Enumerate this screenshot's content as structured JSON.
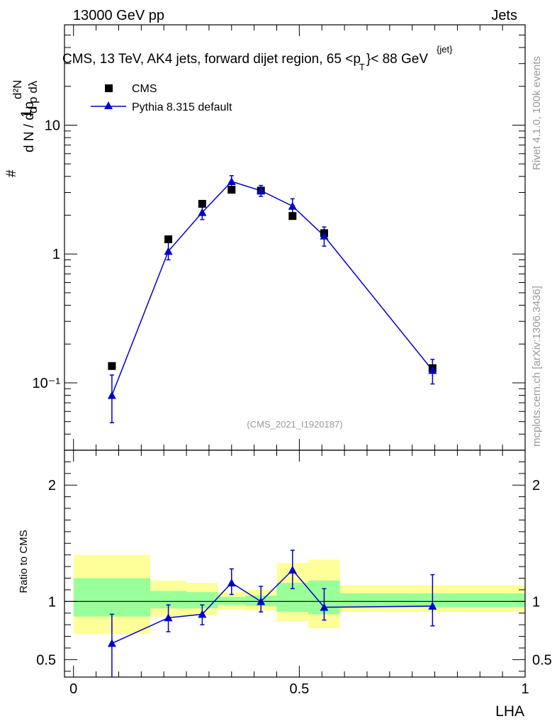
{
  "header": {
    "energy_label": "13000 GeV pp",
    "category_label": "Jets",
    "title_main": "CMS, 13 TeV, AK4 jets, forward dijet region, 65 <p",
    "title_sup": "{jet}",
    "title_sub": "T",
    "title_end": "}< 88 GeV"
  },
  "side_text": {
    "rivet": "Rivet 4.1.0,  100k events",
    "mcplots": "mcplots.cern.ch [arXiv:1306.3436]"
  },
  "watermark": "(CMS_2021_I1920187)",
  "colors": {
    "mc": "#0000cc",
    "data": "#000000",
    "band_outer": "#ffff99",
    "band_inner": "#99ff99"
  },
  "chart_data": [
    {
      "type": "scatter",
      "title": "CMS, 13 TeV, AK4 jets, forward dijet region, 65 <p_T^{jet}< 88 GeV",
      "ylabel": "1/dN/dpT dN²/dpT dλ",
      "yscale": "log",
      "ylim": [
        0.03,
        60
      ],
      "xlim": [
        -0.02,
        1.0
      ],
      "legend_position": "top-left",
      "ytick_labels": [
        "10⁻¹",
        "1",
        "10"
      ],
      "series": [
        {
          "name": "CMS",
          "marker": "square",
          "x": [
            0.085,
            0.21,
            0.285,
            0.35,
            0.415,
            0.485,
            0.555,
            0.795
          ],
          "y": [
            0.135,
            1.3,
            2.45,
            3.15,
            3.1,
            1.97,
            1.45,
            0.13
          ]
        },
        {
          "name": "Pythia 8.315 default",
          "marker": "triangle",
          "x": [
            0.085,
            0.21,
            0.285,
            0.35,
            0.415,
            0.485,
            0.555,
            0.795
          ],
          "y": [
            0.08,
            1.05,
            2.1,
            3.65,
            3.1,
            2.35,
            1.38,
            0.125
          ],
          "yerr_low": [
            0.049,
            0.9,
            1.85,
            3.3,
            2.8,
            2.05,
            1.15,
            0.098
          ],
          "yerr_high": [
            0.115,
            1.25,
            2.4,
            4.05,
            3.4,
            2.68,
            1.62,
            0.152
          ]
        }
      ]
    },
    {
      "type": "line",
      "ylabel": "Ratio to CMS",
      "xlabel": "LHA",
      "xlim": [
        -0.02,
        1.0
      ],
      "ylim": [
        0.35,
        2.3
      ],
      "xtick_labels": [
        "0",
        "0.5",
        "1"
      ],
      "ytick_labels": [
        "0.5",
        "1",
        "2"
      ],
      "uncertainty_bands": {
        "edges": [
          0.0,
          0.17,
          0.25,
          0.32,
          0.38,
          0.45,
          0.52,
          0.59,
          1.0
        ],
        "outer_low": [
          0.72,
          0.87,
          0.88,
          0.93,
          0.92,
          0.83,
          0.77,
          0.91
        ],
        "outer_high": [
          1.4,
          1.18,
          1.16,
          1.08,
          1.1,
          1.33,
          1.36,
          1.14
        ],
        "inner_low": [
          0.87,
          0.94,
          0.94,
          0.97,
          0.96,
          0.91,
          0.89,
          0.95
        ],
        "inner_high": [
          1.2,
          1.09,
          1.08,
          1.04,
          1.05,
          1.16,
          1.18,
          1.07
        ]
      },
      "series": [
        {
          "name": "Pythia 8.315 default / CMS",
          "x": [
            0.085,
            0.21,
            0.285,
            0.35,
            0.415,
            0.485,
            0.555,
            0.795
          ],
          "y": [
            0.64,
            0.86,
            0.89,
            1.16,
            1.0,
            1.27,
            0.95,
            0.96
          ],
          "yerr_low": [
            0.35,
            0.74,
            0.8,
            1.06,
            0.91,
            1.11,
            0.84,
            0.79
          ],
          "yerr_high": [
            0.89,
            0.97,
            0.97,
            1.28,
            1.13,
            1.44,
            1.11,
            1.23
          ]
        }
      ]
    }
  ]
}
